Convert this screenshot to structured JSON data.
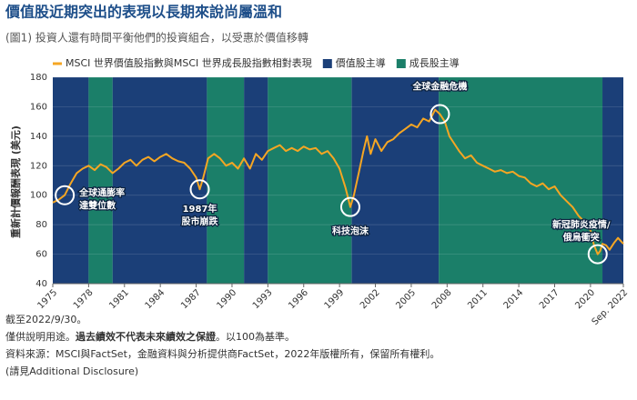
{
  "chart_data": {
    "type": "line",
    "title": "價值股近期突出的表現以長期來說尚屬溫和",
    "subtitle": "(圖1) 投資人還有時間平衡他們的投資組合，以受惠於價值移轉",
    "y_label": "重新計價報酬表現 (美元)",
    "x": [
      1975,
      1975.5,
      1976,
      1976.5,
      1977,
      1977.5,
      1978,
      1978.5,
      1979,
      1979.5,
      1980,
      1980.5,
      1981,
      1981.5,
      1982,
      1982.5,
      1983,
      1983.5,
      1984,
      1984.5,
      1985,
      1985.5,
      1986,
      1986.5,
      1987,
      1987.3,
      1987.6,
      1988,
      1988.5,
      1989,
      1989.5,
      1990,
      1990.5,
      1991,
      1991.5,
      1992,
      1992.5,
      1993,
      1993.5,
      1994,
      1994.5,
      1995,
      1995.5,
      1996,
      1996.5,
      1997,
      1997.5,
      1998,
      1998.5,
      1999,
      1999.5,
      1999.9,
      2000.2,
      2000.6,
      2001,
      2001.3,
      2001.6,
      2002,
      2002.5,
      2003,
      2003.5,
      2004,
      2004.5,
      2005,
      2005.5,
      2006,
      2006.5,
      2007,
      2007.4,
      2007.8,
      2008.2,
      2008.6,
      2009,
      2009.5,
      2010,
      2010.5,
      2011,
      2011.5,
      2012,
      2012.5,
      2013,
      2013.5,
      2014,
      2014.5,
      2015,
      2015.5,
      2016,
      2016.5,
      2017,
      2017.5,
      2018,
      2018.5,
      2019,
      2019.5,
      2020,
      2020.3,
      2020.6,
      2020.8,
      2021,
      2021.3,
      2021.6,
      2022,
      2022.3,
      2022.75
    ],
    "series": [
      {
        "name": "MSCI 世界價值股指數與MSCI 世界成長股指數相對表現",
        "color": "#f5a623",
        "values": [
          95,
          97,
          100,
          108,
          115,
          118,
          120,
          117,
          121,
          119,
          115,
          118,
          122,
          124,
          120,
          124,
          126,
          123,
          126,
          128,
          125,
          123,
          122,
          118,
          112,
          104,
          112,
          125,
          128,
          125,
          120,
          122,
          118,
          125,
          118,
          128,
          124,
          130,
          132,
          134,
          130,
          132,
          130,
          133,
          131,
          132,
          128,
          130,
          125,
          118,
          105,
          92,
          100,
          115,
          130,
          140,
          128,
          138,
          130,
          136,
          138,
          142,
          145,
          148,
          146,
          152,
          150,
          158,
          155,
          150,
          140,
          135,
          130,
          125,
          127,
          122,
          120,
          118,
          116,
          117,
          115,
          116,
          113,
          112,
          108,
          106,
          108,
          104,
          106,
          100,
          96,
          92,
          86,
          82,
          76,
          66,
          60,
          62,
          67,
          66,
          63,
          68,
          71,
          67
        ]
      }
    ],
    "regimes": [
      {
        "name": "價值股主導",
        "color": "#1b3f78",
        "periods": [
          [
            1975,
            1978
          ],
          [
            1980,
            1987.9
          ],
          [
            1991,
            1993
          ],
          [
            2000,
            2007.3
          ],
          [
            2021,
            2022.75
          ]
        ]
      },
      {
        "name": "成長股主導",
        "color": "#1b7f69",
        "periods": [
          [
            1978,
            1980
          ],
          [
            1987.9,
            1991
          ],
          [
            1993,
            2000
          ],
          [
            2007.3,
            2021
          ]
        ]
      }
    ],
    "annotations": [
      {
        "x": 1976,
        "lines": [
          "全球通膨率",
          "達雙位數"
        ]
      },
      {
        "x": 1987.3,
        "lines": [
          "1987年",
          "股市崩跌"
        ]
      },
      {
        "x": 1999.9,
        "lines": [
          "科技泡沫"
        ]
      },
      {
        "x": 2007.4,
        "lines": [
          "全球金融危機"
        ]
      },
      {
        "x": 2020.6,
        "lines": [
          "新冠肺炎疫情/",
          "俄烏衝突"
        ]
      }
    ],
    "xlim": [
      1975,
      2022.75
    ],
    "xticks": [
      1975,
      1978,
      1981,
      1984,
      1987,
      1990,
      1993,
      1996,
      1999,
      2002,
      2005,
      2008,
      2011,
      2014,
      2017,
      2020,
      {
        "value": 2022.75,
        "label": "Sep. 2022"
      }
    ],
    "ylim": [
      40,
      180
    ],
    "yticks": [
      40,
      60,
      80,
      100,
      120,
      140,
      160,
      180
    ],
    "grid": true,
    "notes": [
      [
        "截至2022/9/30。"
      ],
      [
        "僅供說明用途。",
        "過去績效不代表未來績效之保證",
        "。以100為基準。"
      ],
      [
        "資料來源：MSCI與FactSet，金融資料與分析提供商FactSet，2022年版權所有，保留所有權利。"
      ],
      [
        "(請見Additional Disclosure)"
      ]
    ]
  }
}
